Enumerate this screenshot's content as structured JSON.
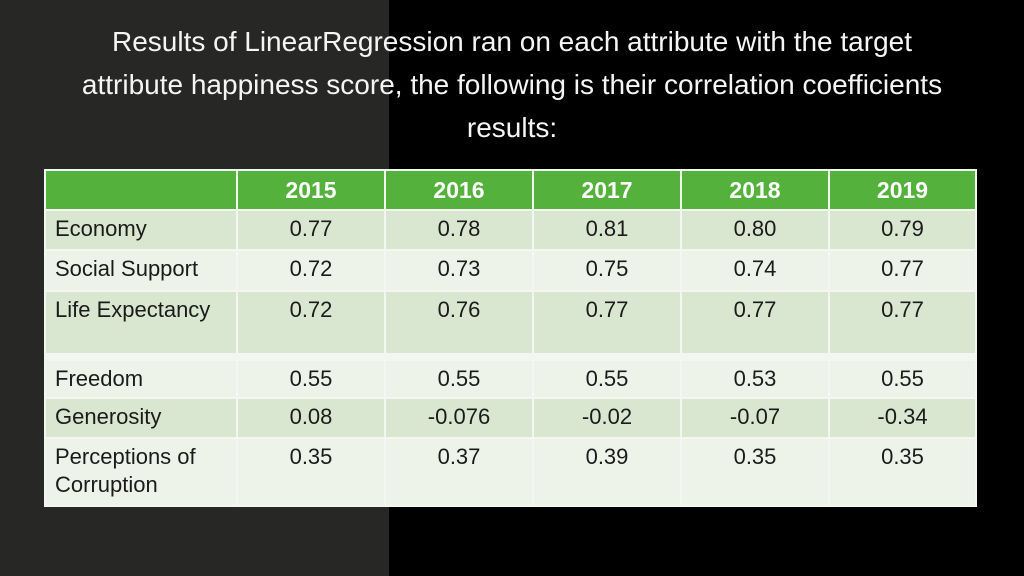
{
  "slide": {
    "title_lines": [
      "Results of LinearRegression ran on each attribute with the target",
      "attribute happiness score, the following is their correlation coefficients",
      "results:"
    ]
  },
  "colors": {
    "header_green": "#54b13c",
    "band_dark": "#d9e6d0",
    "band_light": "#eef3e9",
    "grid_white": "#f4f7f1",
    "bg_left": "#272726",
    "bg_right": "#000000",
    "title_text": "#f5f5f5",
    "cell_text": "#1b1b1b",
    "header_text": "#fdfdfd"
  },
  "chart_data": {
    "type": "table",
    "columns": [
      "",
      "2015",
      "2016",
      "2017",
      "2018",
      "2019"
    ],
    "rows": [
      {
        "label": "Economy",
        "values": [
          "0.77",
          "0.78",
          "0.81",
          "0.80",
          "0.79"
        ]
      },
      {
        "label": "Social Support",
        "values": [
          "0.72",
          "0.73",
          "0.75",
          "0.74",
          "0.77"
        ]
      },
      {
        "label": "Life Expectancy",
        "values": [
          "0.72",
          "0.76",
          "0.77",
          "0.77",
          "0.77"
        ]
      },
      {
        "label": "Freedom",
        "values": [
          "0.55",
          "0.55",
          "0.55",
          "0.53",
          "0.55"
        ]
      },
      {
        "label": "Generosity",
        "values": [
          "0.08",
          "-0.076",
          "-0.02",
          "-0.07",
          "-0.34"
        ]
      },
      {
        "label": "Perceptions of Corruption",
        "values": [
          "0.35",
          "0.37",
          "0.39",
          "0.35",
          "0.35"
        ]
      }
    ],
    "spacer_after_row_index": 2
  }
}
